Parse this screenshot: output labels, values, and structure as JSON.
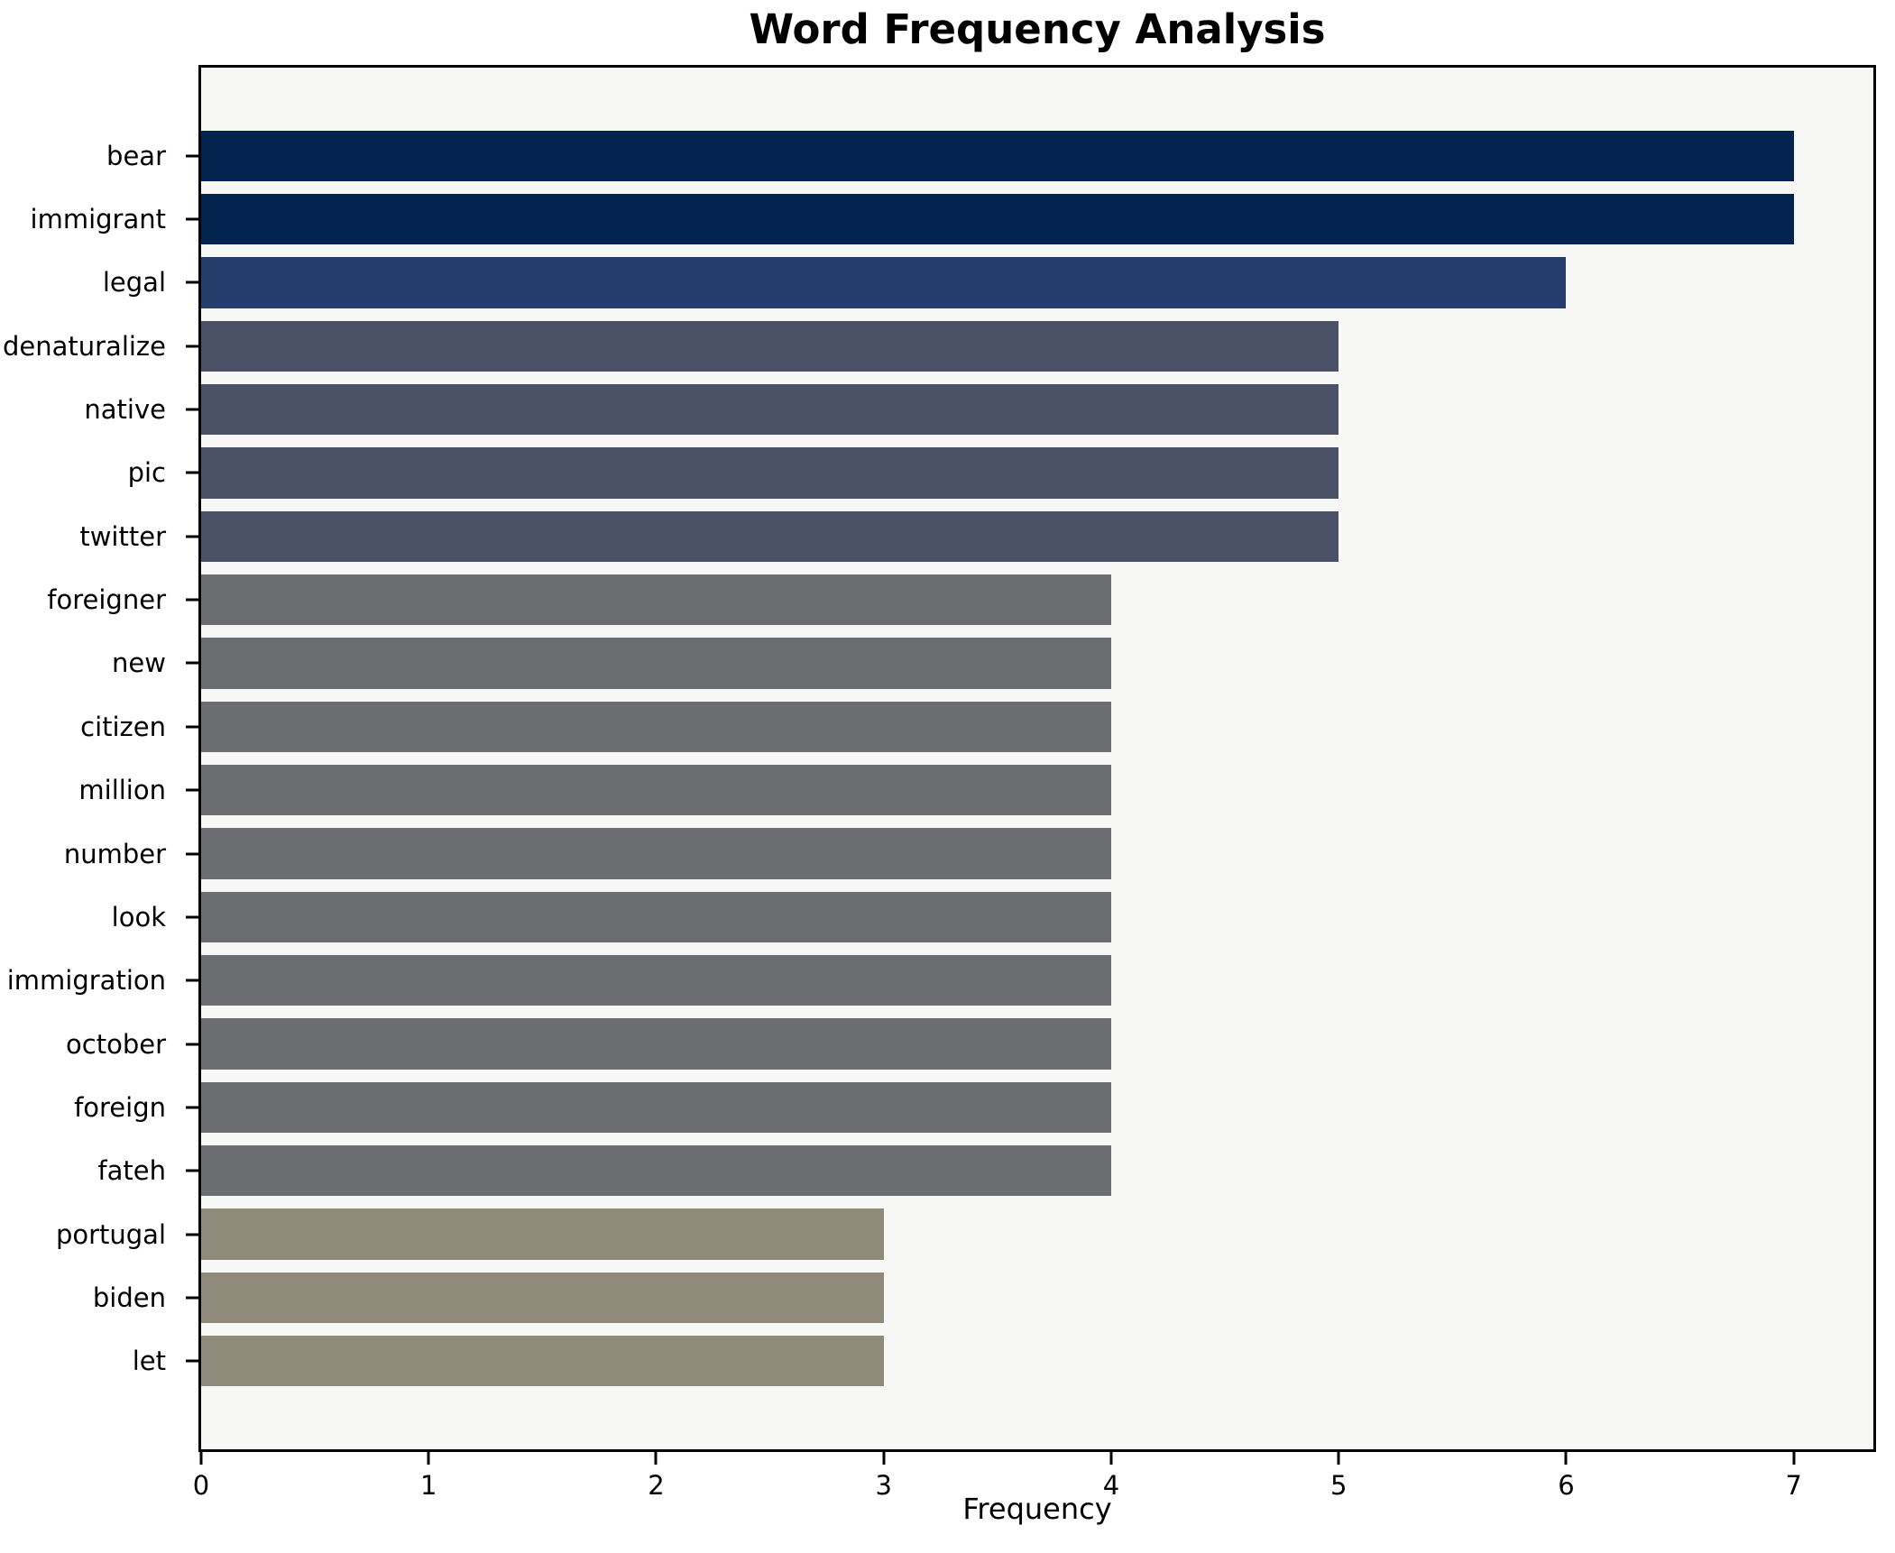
{
  "chart_data": {
    "type": "bar",
    "orientation": "horizontal",
    "title": "Word Frequency Analysis",
    "xlabel": "Frequency",
    "ylabel": "",
    "categories": [
      "bear",
      "immigrant",
      "legal",
      "denaturalize",
      "native",
      "pic",
      "twitter",
      "foreigner",
      "new",
      "citizen",
      "million",
      "number",
      "look",
      "immigration",
      "october",
      "foreign",
      "fateh",
      "portugal",
      "biden",
      "let"
    ],
    "values": [
      7,
      7,
      6,
      5,
      5,
      5,
      5,
      4,
      4,
      4,
      4,
      4,
      4,
      4,
      4,
      4,
      4,
      3,
      3,
      3
    ],
    "bar_colors": [
      "#02234e",
      "#02234e",
      "#243d6b",
      "#4b5268",
      "#4b5268",
      "#4b5268",
      "#4b5268",
      "#6c6d71",
      "#6c6d71",
      "#6c6d71",
      "#6c6d71",
      "#6c6d71",
      "#6c6d71",
      "#6c6d71",
      "#6c6d71",
      "#6c6d71",
      "#6c6d71",
      "#8f8a79",
      "#8f8a79",
      "#8f8a79"
    ],
    "x_ticks": [
      0,
      1,
      2,
      3,
      4,
      5,
      6,
      7
    ],
    "xlim": [
      0,
      7.35
    ],
    "grid": false,
    "legend": null,
    "plot_bg": "#f7f7f5",
    "figure_bg": "#ffffff",
    "spine_color": "#000000",
    "bar_height_units": 0.8,
    "edge_margin_units": 1.39
  }
}
